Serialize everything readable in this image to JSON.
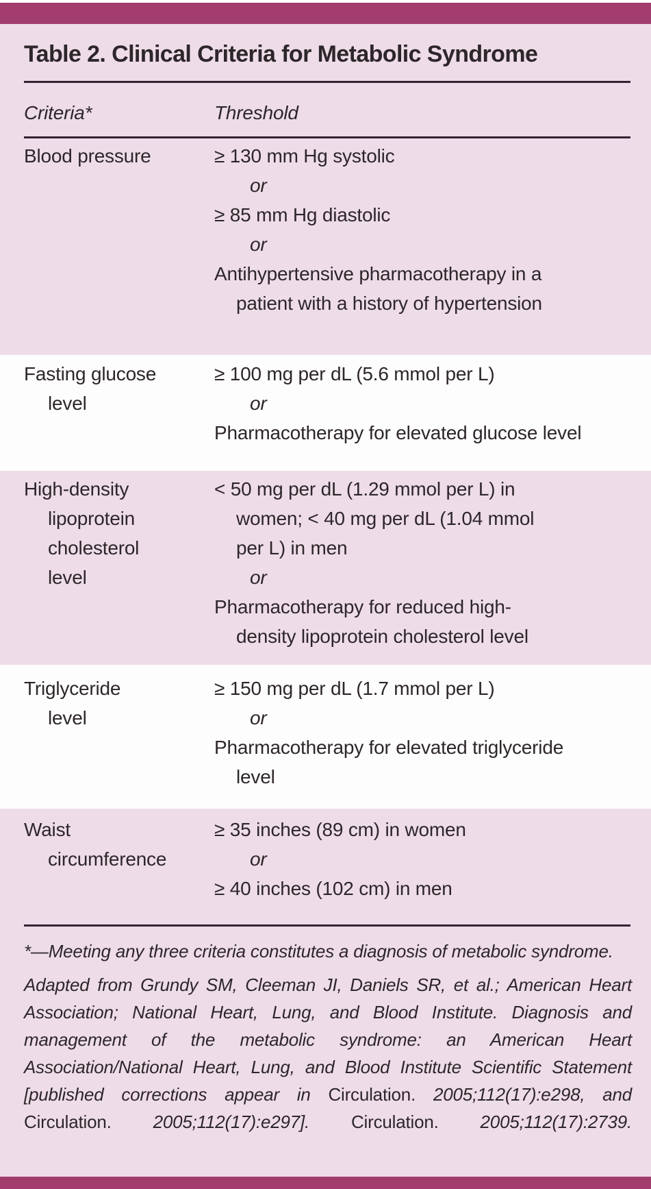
{
  "table": {
    "title": "Table 2. Clinical Criteria for Metabolic Syndrome",
    "columns": {
      "criteria": "Criteria*",
      "threshold": "Threshold"
    },
    "rows": [
      {
        "criteria_lines": [
          {
            "text": "Blood pressure"
          }
        ],
        "threshold_lines": [
          {
            "text": "≥ 130 mm Hg systolic",
            "style": "main"
          },
          {
            "text": "or",
            "style": "or"
          },
          {
            "text": "≥ 85 mm Hg diastolic",
            "style": "main"
          },
          {
            "text": "or",
            "style": "or"
          },
          {
            "text": "Antihypertensive pharmacotherapy in a",
            "style": "main"
          },
          {
            "text": "patient with a history of hypertension",
            "style": "cont"
          }
        ]
      },
      {
        "criteria_lines": [
          {
            "text": "Fasting glucose"
          },
          {
            "text": "level"
          }
        ],
        "threshold_lines": [
          {
            "text": "≥ 100 mg per dL (5.6 mmol per L)",
            "style": "main"
          },
          {
            "text": "or",
            "style": "or"
          },
          {
            "text": "Pharmacotherapy for elevated glucose level",
            "style": "main"
          }
        ]
      },
      {
        "criteria_lines": [
          {
            "text": "High-density"
          },
          {
            "text": "lipoprotein"
          },
          {
            "text": "cholesterol"
          },
          {
            "text": "level"
          }
        ],
        "threshold_lines": [
          {
            "text": "< 50 mg per dL (1.29 mmol per L) in",
            "style": "main"
          },
          {
            "text": "women; < 40 mg per dL (1.04 mmol",
            "style": "cont"
          },
          {
            "text": "per L) in men",
            "style": "cont"
          },
          {
            "text": "or",
            "style": "or"
          },
          {
            "text": "Pharmacotherapy for reduced high-",
            "style": "main"
          },
          {
            "text": "density lipoprotein cholesterol level",
            "style": "cont"
          }
        ]
      },
      {
        "criteria_lines": [
          {
            "text": "Triglyceride"
          },
          {
            "text": "level"
          }
        ],
        "threshold_lines": [
          {
            "text": "≥ 150 mg per dL (1.7 mmol per L)",
            "style": "main"
          },
          {
            "text": "or",
            "style": "or"
          },
          {
            "text": "Pharmacotherapy for elevated triglyceride",
            "style": "main"
          },
          {
            "text": "level",
            "style": "cont"
          }
        ]
      },
      {
        "criteria_lines": [
          {
            "text": "Waist"
          },
          {
            "text": "circumference"
          }
        ],
        "threshold_lines": [
          {
            "text": "≥ 35 inches (89 cm) in women",
            "style": "main"
          },
          {
            "text": "or",
            "style": "or"
          },
          {
            "text": "≥ 40 inches (102 cm) in men",
            "style": "main"
          }
        ]
      }
    ]
  },
  "footnotes": {
    "note1": "*—Meeting any three criteria constitutes a diagnosis of metabolic syndrome.",
    "note2_segments": [
      {
        "text": "Adapted from Grundy SM, Cleeman JI, Daniels SR, et al.; American Heart Association; National Heart, Lung, and Blood Institute. Diagnosis and management of the metabolic syndrome: an American Heart Association/National Heart, Lung, and Blood Institute Scientific Statement [published corrections appear in ",
        "style": "italic"
      },
      {
        "text": "Circulation. ",
        "style": "roman"
      },
      {
        "text": "2005;112(17):e298, and ",
        "style": "italic"
      },
      {
        "text": "Circulation. ",
        "style": "roman"
      },
      {
        "text": "2005;112(17):e297]. ",
        "style": "italic"
      },
      {
        "text": "Circulation. ",
        "style": "roman"
      },
      {
        "text": "2005;112(17):2739.",
        "style": "italic"
      }
    ]
  },
  "colors": {
    "accent_bar": "#a23d6e",
    "row_pink": "#eedde8",
    "row_white": "#fdfdfd",
    "text": "#2d262a",
    "rule": "#342331"
  }
}
